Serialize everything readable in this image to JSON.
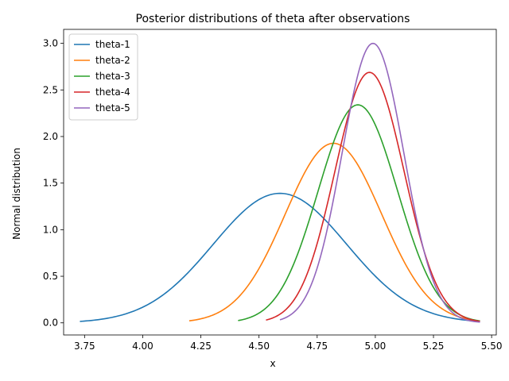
{
  "chart_data": {
    "type": "line",
    "title": "Posterior distributions of theta after observations",
    "xlabel": "x",
    "ylabel": "Normal distribution",
    "xlim": [
      3.66,
      5.52
    ],
    "ylim": [
      -0.13,
      3.15
    ],
    "xticks": [
      3.75,
      4.0,
      4.25,
      4.5,
      4.75,
      5.0,
      5.25,
      5.5
    ],
    "xtick_labels": [
      "3.75",
      "4.00",
      "4.25",
      "4.50",
      "4.75",
      "5.00",
      "5.25",
      "5.50"
    ],
    "yticks": [
      0.0,
      0.5,
      1.0,
      1.5,
      2.0,
      2.5,
      3.0
    ],
    "ytick_labels": [
      "0.0",
      "0.5",
      "1.0",
      "1.5",
      "2.0",
      "2.5",
      "3.0"
    ],
    "grid": false,
    "legend_position": "top-left",
    "series": [
      {
        "name": "theta-1",
        "color": "#1f77b4",
        "mean": 4.59,
        "sd": 0.287,
        "x_range": [
          3.73,
          5.45
        ]
      },
      {
        "name": "theta-2",
        "color": "#ff7f0e",
        "mean": 4.82,
        "sd": 0.207,
        "x_range": [
          4.2,
          5.45
        ]
      },
      {
        "name": "theta-3",
        "color": "#2ca02c",
        "mean": 4.925,
        "sd": 0.1705,
        "x_range": [
          4.41,
          5.45
        ]
      },
      {
        "name": "theta-4",
        "color": "#d62728",
        "mean": 4.975,
        "sd": 0.1484,
        "x_range": [
          4.53,
          5.45
        ]
      },
      {
        "name": "theta-5",
        "color": "#9467bd",
        "mean": 4.99,
        "sd": 0.133,
        "x_range": [
          4.59,
          5.45
        ]
      }
    ]
  }
}
